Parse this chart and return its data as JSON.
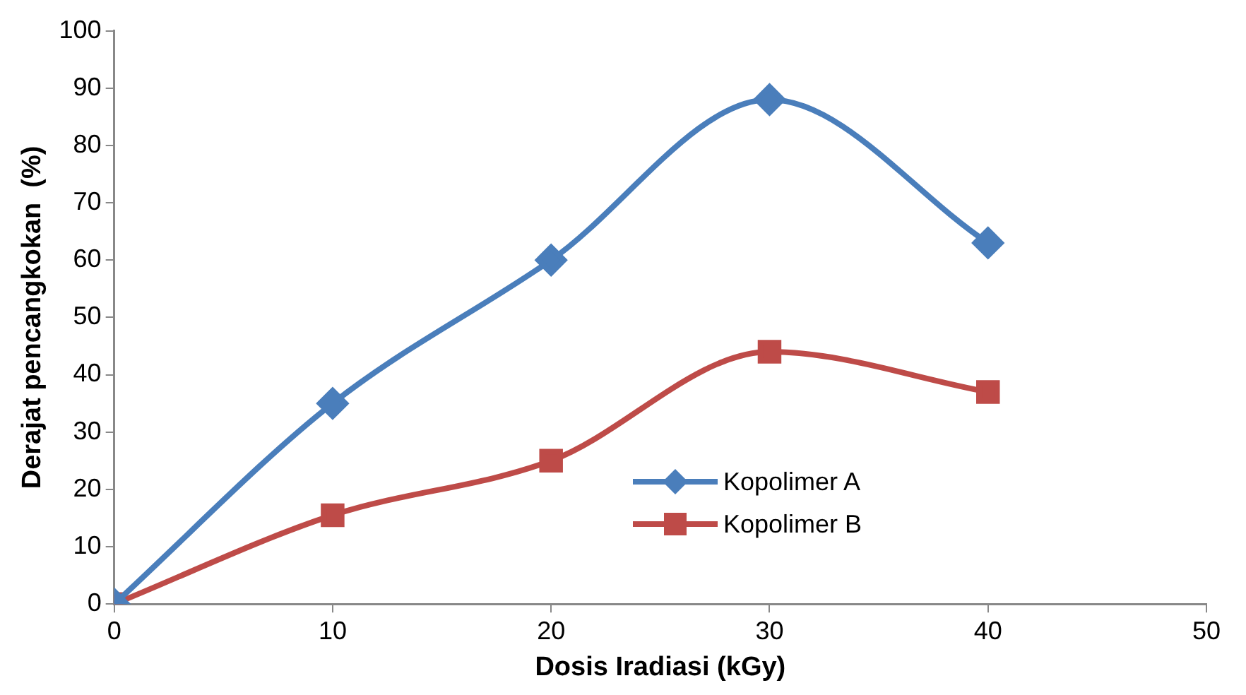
{
  "chart_data": {
    "type": "line",
    "xlabel": "Dosis Iradiasi (kGy)",
    "ylabel": "Derajat pencangkokan  (%)",
    "x": [
      0,
      10,
      20,
      30,
      40
    ],
    "series": [
      {
        "name": "Kopolimer A",
        "color": "#4a7ebb",
        "marker": "diamond",
        "values": [
          0,
          35,
          60,
          88,
          63
        ]
      },
      {
        "name": "Kopolimer B",
        "color": "#be4b48",
        "marker": "square",
        "values": [
          0,
          15.5,
          25,
          44,
          37
        ]
      }
    ],
    "xlim": [
      0,
      50
    ],
    "xticks": [
      0,
      10,
      20,
      30,
      40,
      50
    ],
    "ylim": [
      0,
      100
    ],
    "yticks": [
      0,
      10,
      20,
      30,
      40,
      50,
      60,
      70,
      80,
      90,
      100
    ],
    "grid": false,
    "legend": "bottom right",
    "line_style": "solid"
  }
}
